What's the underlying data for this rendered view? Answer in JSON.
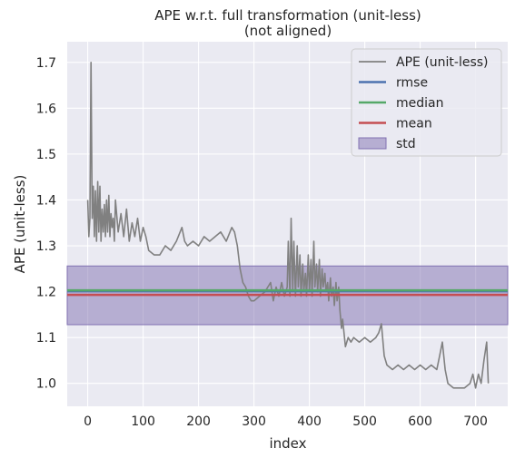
{
  "chart_data": {
    "type": "line",
    "title": "APE w.r.t. full transformation (unit-less)",
    "subtitle": "(not aligned)",
    "xlabel": "index",
    "ylabel": "APE (unit-less)",
    "xlim": [
      -37,
      758
    ],
    "ylim": [
      0.95,
      1.745
    ],
    "xticks": [
      0,
      100,
      200,
      300,
      400,
      500,
      600,
      700
    ],
    "yticks": [
      1.0,
      1.1,
      1.2,
      1.3,
      1.4,
      1.5,
      1.6,
      1.7
    ],
    "ytick_labels": [
      "1.0",
      "1.1",
      "1.2",
      "1.3",
      "1.4",
      "1.5",
      "1.6",
      "1.7"
    ],
    "grid": true,
    "legend_position": "top-right",
    "colors": {
      "background": "#eaeaf2",
      "grid": "#ffffff",
      "ape": "#808080",
      "rmse": "#4c72b0",
      "median": "#55a868",
      "mean": "#c44e52",
      "std": "#8172b2"
    },
    "series": [
      {
        "name": "APE (unit-less)",
        "x": [
          0,
          2,
          4,
          6,
          8,
          10,
          12,
          14,
          16,
          18,
          20,
          22,
          24,
          26,
          28,
          30,
          32,
          34,
          36,
          38,
          40,
          42,
          44,
          46,
          48,
          50,
          55,
          60,
          65,
          70,
          75,
          80,
          85,
          90,
          95,
          100,
          105,
          110,
          120,
          130,
          140,
          150,
          160,
          170,
          175,
          180,
          190,
          200,
          210,
          220,
          230,
          240,
          250,
          260,
          265,
          270,
          275,
          280,
          285,
          290,
          295,
          300,
          310,
          320,
          330,
          335,
          340,
          345,
          350,
          355,
          360,
          362,
          365,
          367,
          370,
          372,
          375,
          378,
          380,
          383,
          385,
          388,
          390,
          393,
          395,
          398,
          400,
          403,
          405,
          408,
          410,
          413,
          415,
          418,
          420,
          423,
          425,
          428,
          430,
          433,
          435,
          438,
          440,
          443,
          445,
          448,
          450,
          453,
          455,
          458,
          460,
          465,
          470,
          475,
          480,
          490,
          500,
          510,
          520,
          525,
          530,
          535,
          540,
          550,
          560,
          570,
          580,
          590,
          600,
          610,
          620,
          630,
          635,
          640,
          645,
          650,
          660,
          670,
          680,
          690,
          695,
          700,
          705,
          710,
          715,
          720,
          723
        ],
        "values": [
          1.4,
          1.32,
          1.36,
          1.7,
          1.36,
          1.43,
          1.32,
          1.42,
          1.31,
          1.44,
          1.33,
          1.43,
          1.31,
          1.38,
          1.33,
          1.39,
          1.32,
          1.4,
          1.33,
          1.41,
          1.32,
          1.37,
          1.34,
          1.36,
          1.31,
          1.4,
          1.33,
          1.37,
          1.32,
          1.38,
          1.31,
          1.35,
          1.32,
          1.36,
          1.31,
          1.34,
          1.32,
          1.29,
          1.28,
          1.28,
          1.3,
          1.29,
          1.31,
          1.34,
          1.31,
          1.3,
          1.31,
          1.3,
          1.32,
          1.31,
          1.32,
          1.33,
          1.31,
          1.34,
          1.33,
          1.3,
          1.25,
          1.22,
          1.21,
          1.19,
          1.18,
          1.18,
          1.19,
          1.2,
          1.22,
          1.18,
          1.21,
          1.19,
          1.22,
          1.19,
          1.21,
          1.31,
          1.19,
          1.36,
          1.2,
          1.31,
          1.19,
          1.3,
          1.21,
          1.28,
          1.19,
          1.26,
          1.2,
          1.24,
          1.19,
          1.28,
          1.2,
          1.27,
          1.19,
          1.31,
          1.21,
          1.26,
          1.2,
          1.27,
          1.19,
          1.25,
          1.21,
          1.24,
          1.2,
          1.22,
          1.18,
          1.23,
          1.19,
          1.21,
          1.17,
          1.22,
          1.18,
          1.21,
          1.16,
          1.12,
          1.14,
          1.08,
          1.1,
          1.09,
          1.1,
          1.09,
          1.1,
          1.09,
          1.1,
          1.11,
          1.13,
          1.06,
          1.04,
          1.03,
          1.04,
          1.03,
          1.04,
          1.03,
          1.04,
          1.03,
          1.04,
          1.03,
          1.06,
          1.09,
          1.03,
          1.0,
          0.99,
          0.99,
          0.99,
          1.0,
          1.02,
          0.99,
          1.02,
          1.0,
          1.05,
          1.09,
          1.0
        ]
      },
      {
        "name": "rmse",
        "value": 1.201
      },
      {
        "name": "median",
        "value": 1.203
      },
      {
        "name": "mean",
        "value": 1.193
      },
      {
        "name": "std",
        "range": [
          1.128,
          1.256
        ]
      }
    ]
  }
}
